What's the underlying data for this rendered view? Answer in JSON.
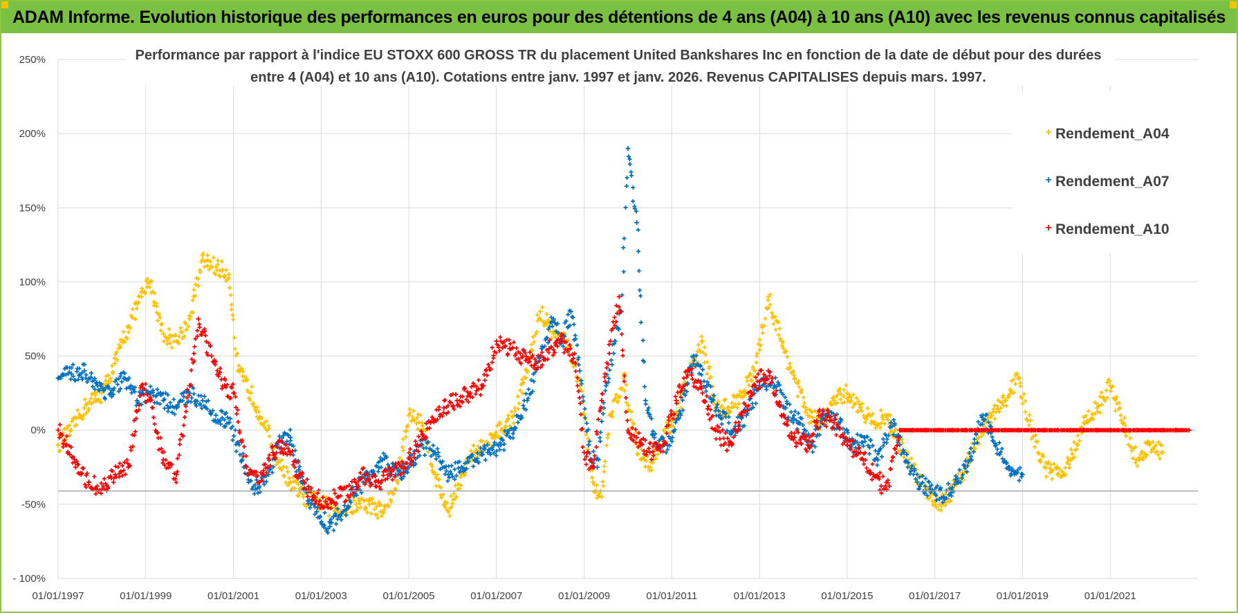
{
  "banner": {
    "title": "ADAM Informe. Evolution historique des performances en euros pour des détentions de 4 ans (A04) à 10 ans (A10) avec les revenus connus capitalisés"
  },
  "colors": {
    "banner_bg": "#7ac143",
    "a04": "#ffc000",
    "a07": "#0070c0",
    "a10": "#ff0000",
    "grid": "#d9d9d9",
    "text": "#404040"
  },
  "chart_data": {
    "type": "scatter",
    "title_line1": "Performance par rapport à l'indice EU STOXX 600 GROSS TR  du placement United Bankshares Inc en fonction de la date de début pour des durées",
    "title_line2": "entre 4 (A04) et 10 ans (A10). Cotations entre janv. 1997 et janv. 2026. Revenus CAPITALISES depuis mars. 1997.",
    "xlabel": "",
    "ylabel": "",
    "xlim": [
      1997.0,
      2023.0
    ],
    "ylim": [
      -100,
      250
    ],
    "x_ticks": [
      1997,
      1999,
      2001,
      2003,
      2005,
      2007,
      2009,
      2011,
      2013,
      2015,
      2017,
      2019,
      2021
    ],
    "x_tick_labels": [
      "01/01/1997",
      "01/01/1999",
      "01/01/2001",
      "01/01/2003",
      "01/01/2005",
      "01/01/2007",
      "01/01/2009",
      "01/01/2011",
      "01/01/2013",
      "01/01/2015",
      "01/01/2017",
      "01/01/2019",
      "01/01/2021"
    ],
    "y_ticks": [
      -100,
      -50,
      0,
      50,
      100,
      150,
      200,
      250
    ],
    "y_tick_labels": [
      "- 100%",
      "-50%",
      "0%",
      "50%",
      "100%",
      "150%",
      "200%",
      "250%"
    ],
    "reference_line_y": -41,
    "legend_position": "top-right",
    "marker": "+",
    "series": [
      {
        "name": "Rendement_A04",
        "key": "a04",
        "x": [
          1997.0,
          1997.3,
          1997.6,
          1998.0,
          1998.3,
          1998.6,
          1998.9,
          1999.1,
          1999.4,
          1999.7,
          2000.0,
          2000.3,
          2000.6,
          2000.9,
          2001.1,
          2001.4,
          2001.7,
          2002.0,
          2002.3,
          2002.6,
          2002.9,
          2003.2,
          2003.5,
          2003.8,
          2004.1,
          2004.4,
          2004.7,
          2005.0,
          2005.3,
          2005.6,
          2005.9,
          2006.2,
          2006.5,
          2006.8,
          2007.1,
          2007.4,
          2007.7,
          2008.0,
          2008.3,
          2008.6,
          2008.9,
          2009.0,
          2009.2,
          2009.4,
          2009.6,
          2009.9,
          2010.2,
          2010.5,
          2010.8,
          2011.1,
          2011.4,
          2011.7,
          2012.0,
          2012.3,
          2012.6,
          2012.9,
          2013.2,
          2013.5,
          2013.8,
          2014.1,
          2014.4,
          2014.7,
          2015.0,
          2015.3,
          2015.6,
          2015.9,
          2016.2,
          2016.5,
          2016.8,
          2017.1,
          2017.4,
          2017.7,
          2018.0,
          2018.3,
          2018.6,
          2018.9,
          2019.2,
          2019.5,
          2019.8,
          2020.1,
          2020.4,
          2020.7,
          2021.0,
          2021.3,
          2021.6,
          2021.9,
          2022.2
        ],
        "y": [
          -10,
          0,
          15,
          25,
          45,
          70,
          90,
          100,
          65,
          60,
          75,
          115,
          110,
          105,
          40,
          25,
          5,
          -20,
          -35,
          -45,
          -48,
          -52,
          -55,
          -50,
          -50,
          -55,
          -40,
          10,
          5,
          -30,
          -55,
          -30,
          -15,
          -10,
          0,
          10,
          40,
          80,
          65,
          60,
          30,
          10,
          -35,
          -45,
          10,
          35,
          -10,
          -25,
          -5,
          10,
          40,
          60,
          15,
          15,
          25,
          40,
          90,
          60,
          35,
          10,
          5,
          20,
          25,
          15,
          5,
          10,
          -10,
          -25,
          -40,
          -50,
          -40,
          -25,
          -5,
          10,
          20,
          35,
          0,
          -25,
          -30,
          -20,
          5,
          15,
          30,
          5,
          -20,
          -10,
          -15
        ]
      },
      {
        "name": "Rendement_A07",
        "key": "a07",
        "x": [
          1997.0,
          1997.3,
          1997.6,
          1997.9,
          1998.2,
          1998.5,
          1998.8,
          1999.1,
          1999.4,
          1999.7,
          2000.0,
          2000.3,
          2000.6,
          2000.9,
          2001.2,
          2001.5,
          2001.8,
          2002.0,
          2002.3,
          2002.6,
          2002.9,
          2003.2,
          2003.5,
          2003.8,
          2004.1,
          2004.4,
          2004.7,
          2005.0,
          2005.3,
          2005.6,
          2005.9,
          2006.2,
          2006.5,
          2006.8,
          2007.1,
          2007.4,
          2007.7,
          2008.0,
          2008.3,
          2008.5,
          2008.7,
          2008.9,
          2009.1,
          2009.3,
          2009.5,
          2009.7,
          2009.85,
          2010.0,
          2010.2,
          2010.4,
          2010.6,
          2010.9,
          2011.2,
          2011.5,
          2011.8,
          2012.1,
          2012.4,
          2012.7,
          2013.0,
          2013.3,
          2013.6,
          2013.9,
          2014.2,
          2014.5,
          2014.8,
          2015.1,
          2015.4,
          2015.7,
          2016.0,
          2016.3,
          2016.6,
          2016.9,
          2017.2,
          2017.5,
          2017.8,
          2018.1,
          2018.4,
          2018.7,
          2019.0
        ],
        "y": [
          35,
          38,
          40,
          30,
          25,
          35,
          20,
          25,
          20,
          15,
          25,
          20,
          10,
          5,
          -20,
          -40,
          -30,
          -10,
          -5,
          -40,
          -55,
          -65,
          -55,
          -40,
          -30,
          -20,
          -30,
          -25,
          -10,
          -15,
          -30,
          -25,
          -20,
          -15,
          -10,
          0,
          20,
          50,
          75,
          60,
          80,
          40,
          -10,
          -25,
          30,
          60,
          80,
          190,
          140,
          20,
          -5,
          -10,
          10,
          50,
          30,
          10,
          0,
          10,
          30,
          35,
          15,
          5,
          -10,
          10,
          5,
          -10,
          -5,
          -20,
          5,
          -15,
          -35,
          -40,
          -45,
          -35,
          -20,
          10,
          -10,
          -25,
          -30
        ]
      },
      {
        "name": "Rendement_A10",
        "key": "a10",
        "x": [
          1997.0,
          1997.2,
          1997.4,
          1997.7,
          1998.0,
          1998.3,
          1998.6,
          1998.9,
          1999.1,
          1999.4,
          1999.7,
          2000.0,
          2000.2,
          2000.5,
          2000.8,
          2001.0,
          2001.3,
          2001.6,
          2001.9,
          2002.2,
          2002.5,
          2002.8,
          2003.1,
          2003.4,
          2003.7,
          2004.0,
          2004.3,
          2004.6,
          2004.9,
          2005.2,
          2005.5,
          2005.8,
          2006.1,
          2006.4,
          2006.7,
          2007.0,
          2007.3,
          2007.6,
          2007.9,
          2008.2,
          2008.5,
          2008.8,
          2009.0,
          2009.2,
          2009.4,
          2009.6,
          2009.8,
          2010.0,
          2010.2,
          2010.5,
          2010.8,
          2011.1,
          2011.4,
          2011.7,
          2012.0,
          2012.3,
          2012.6,
          2012.9,
          2013.2,
          2013.5,
          2013.8,
          2014.1,
          2014.4,
          2014.7,
          2015.0,
          2015.3,
          2015.6,
          2015.9,
          2016.2,
          2016.5,
          2016.8,
          2017.1,
          2017.4,
          2017.7,
          2018.0,
          2018.3,
          2018.6,
          2018.9,
          2019.2,
          2019.5,
          2019.8,
          2020.1,
          2020.4,
          2020.7,
          2021.0,
          2021.3,
          2021.6,
          2021.9,
          2022.2,
          2022.5,
          2022.8
        ],
        "y": [
          0,
          -10,
          -25,
          -35,
          -40,
          -30,
          -25,
          30,
          20,
          -20,
          -30,
          30,
          75,
          50,
          30,
          25,
          -25,
          -35,
          -15,
          -10,
          -30,
          -45,
          -48,
          -45,
          -40,
          -30,
          -35,
          -30,
          -25,
          -10,
          5,
          15,
          20,
          25,
          30,
          60,
          55,
          50,
          45,
          55,
          60,
          45,
          -15,
          -25,
          20,
          60,
          90,
          0,
          -5,
          -15,
          -10,
          20,
          40,
          25,
          0,
          -10,
          10,
          30,
          40,
          10,
          -5,
          -10,
          10,
          5,
          -10,
          -15,
          -30,
          -40,
          0,
          0,
          0,
          0,
          0,
          0,
          0,
          0,
          0,
          0,
          0,
          0,
          0,
          0,
          0,
          0,
          0,
          0,
          0,
          0,
          0,
          0,
          0
        ]
      }
    ]
  }
}
